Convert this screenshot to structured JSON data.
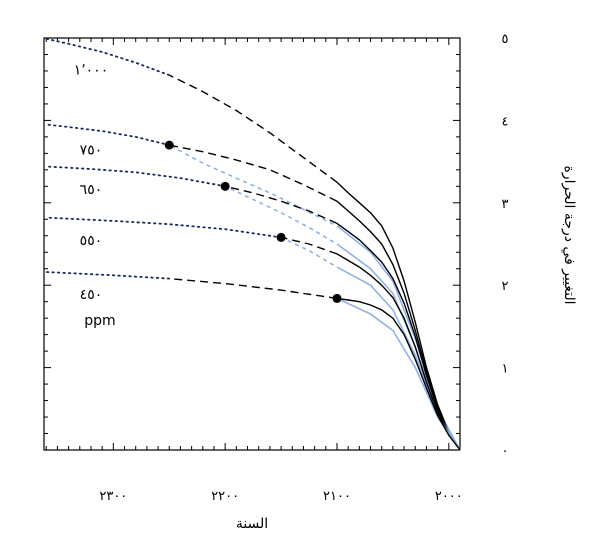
{
  "chart_data": {
    "type": "line",
    "title": "",
    "xlabel": "السنة",
    "ylabel": "التغيير في درجة الحرارة",
    "x_reversed": true,
    "xlim": [
      1990,
      2362
    ],
    "ylim": [
      0,
      5
    ],
    "x_ticks": [
      {
        "value": 2000,
        "label": "٢٠٠٠"
      },
      {
        "value": 2100,
        "label": "٢١٠٠"
      },
      {
        "value": 2200,
        "label": "٢٢٠٠"
      },
      {
        "value": 2300,
        "label": "٢٣٠٠"
      }
    ],
    "y_ticks": [
      {
        "value": 0,
        "label": "٠"
      },
      {
        "value": 1,
        "label": "١"
      },
      {
        "value": 2,
        "label": "٢"
      },
      {
        "value": 3,
        "label": "٣"
      },
      {
        "value": 4,
        "label": "٤"
      },
      {
        "value": 5,
        "label": "٥"
      }
    ],
    "unit_label": "ppm",
    "series": [
      {
        "name": "١٬٠٠٠",
        "stab_year": null,
        "black_x": [
          1990,
          2000,
          2010,
          2020,
          2030,
          2040,
          2050,
          2060,
          2070,
          2080,
          2090,
          2100
        ],
        "black_y": [
          0.0,
          0.22,
          0.55,
          1.0,
          1.55,
          2.05,
          2.45,
          2.72,
          2.88,
          3.0,
          3.12,
          3.25
        ],
        "dashed_x": [
          2100,
          2130,
          2160,
          2190,
          2220,
          2250
        ],
        "dashed_y": [
          3.25,
          3.55,
          3.85,
          4.12,
          4.35,
          4.55
        ],
        "dotted_x": [
          2250,
          2280,
          2310,
          2340,
          2360
        ],
        "dotted_y": [
          4.55,
          4.7,
          4.83,
          4.93,
          4.99
        ],
        "blue_x": [],
        "blue_y": []
      },
      {
        "name": "٧٥٠",
        "stab_year": 2250,
        "black_x": [
          1990,
          2000,
          2010,
          2020,
          2030,
          2040,
          2050,
          2060,
          2070,
          2080,
          2090,
          2100
        ],
        "black_y": [
          0.0,
          0.22,
          0.53,
          0.95,
          1.45,
          1.9,
          2.25,
          2.5,
          2.65,
          2.78,
          2.9,
          3.02
        ],
        "dashed_x": [
          2100,
          2130,
          2160,
          2190,
          2220,
          2250
        ],
        "dashed_y": [
          3.02,
          3.22,
          3.4,
          3.52,
          3.62,
          3.7
        ],
        "dotted_x": [
          2250,
          2280,
          2310,
          2340,
          2360
        ],
        "dotted_y": [
          3.7,
          3.8,
          3.87,
          3.92,
          3.95
        ],
        "blue_x": [
          1990,
          2010,
          2030,
          2050,
          2070,
          2100,
          2130,
          2160,
          2190,
          2220,
          2250
        ],
        "blue_y": [
          0.0,
          0.5,
          1.35,
          2.05,
          2.4,
          2.72,
          2.92,
          3.12,
          3.3,
          3.48,
          3.7
        ]
      },
      {
        "name": "٦٥٠",
        "stab_year": 2200,
        "black_x": [
          1990,
          2000,
          2010,
          2020,
          2030,
          2040,
          2050,
          2060,
          2070,
          2080,
          2090,
          2100
        ],
        "black_y": [
          0.0,
          0.21,
          0.5,
          0.9,
          1.38,
          1.78,
          2.08,
          2.28,
          2.42,
          2.55,
          2.65,
          2.75
        ],
        "dashed_x": [
          2100,
          2125,
          2150,
          2175,
          2200
        ],
        "dashed_y": [
          2.75,
          2.9,
          3.02,
          3.12,
          3.2
        ],
        "dotted_x": [
          2200,
          2240,
          2280,
          2320,
          2360
        ],
        "dotted_y": [
          3.2,
          3.3,
          3.37,
          3.41,
          3.44
        ],
        "blue_x": [
          1990,
          2010,
          2030,
          2050,
          2070,
          2100,
          2125,
          2150,
          2175,
          2200
        ],
        "blue_y": [
          0.0,
          0.46,
          1.25,
          1.9,
          2.2,
          2.5,
          2.7,
          2.88,
          3.04,
          3.2
        ]
      },
      {
        "name": "٥٥٠",
        "stab_year": 2150,
        "black_x": [
          1990,
          2000,
          2010,
          2020,
          2030,
          2040,
          2050,
          2060,
          2070,
          2080,
          2090,
          2100
        ],
        "black_y": [
          0.0,
          0.2,
          0.46,
          0.82,
          1.25,
          1.6,
          1.85,
          2.0,
          2.12,
          2.22,
          2.3,
          2.38
        ],
        "dashed_x": [
          2100,
          2125,
          2150
        ],
        "dashed_y": [
          2.38,
          2.5,
          2.58
        ],
        "dotted_x": [
          2150,
          2200,
          2250,
          2300,
          2360
        ],
        "dotted_y": [
          2.58,
          2.68,
          2.74,
          2.78,
          2.82
        ],
        "blue_x": [
          1990,
          2010,
          2030,
          2050,
          2070,
          2100,
          2125,
          2150
        ],
        "blue_y": [
          0.0,
          0.44,
          1.15,
          1.7,
          2.0,
          2.22,
          2.42,
          2.58
        ]
      },
      {
        "name": "٤٥٠",
        "stab_year": 2100,
        "black_x": [
          1990,
          2000,
          2010,
          2020,
          2030,
          2040,
          2050,
          2060,
          2070,
          2080,
          2090,
          2100
        ],
        "black_y": [
          0.0,
          0.18,
          0.42,
          0.75,
          1.1,
          1.4,
          1.6,
          1.7,
          1.76,
          1.8,
          1.82,
          1.84
        ],
        "dashed_x": [
          2100,
          2150,
          2200,
          2250
        ],
        "dashed_y": [
          1.84,
          1.94,
          2.02,
          2.08
        ],
        "dotted_x": [
          2250,
          2300,
          2360
        ],
        "dotted_y": [
          2.08,
          2.12,
          2.16
        ],
        "blue_x": [
          1990,
          2010,
          2030,
          2050,
          2070,
          2100
        ],
        "blue_y": [
          0.0,
          0.4,
          1.0,
          1.45,
          1.65,
          1.84
        ]
      }
    ],
    "colors": {
      "black": "#000000",
      "blue": "#8fb2e6",
      "dotted": "#1a2a5a"
    }
  }
}
